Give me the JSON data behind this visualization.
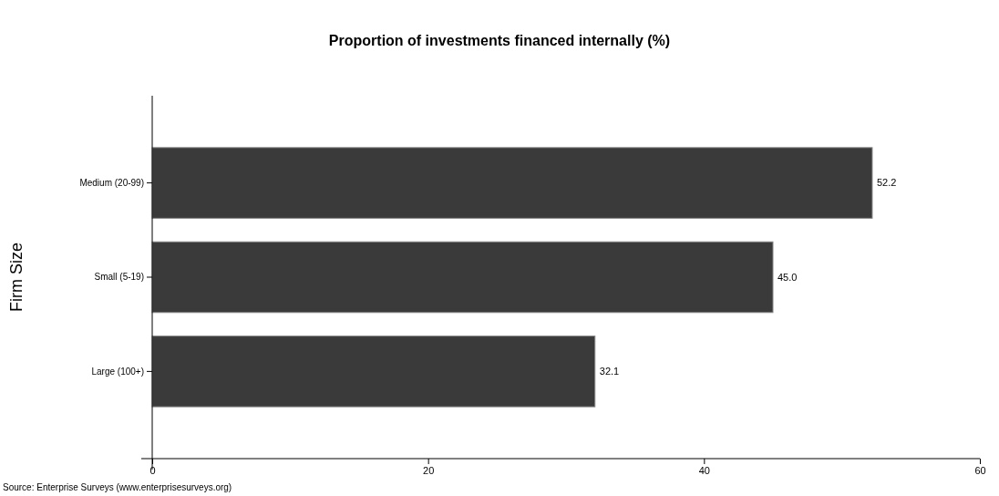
{
  "chart_data": {
    "type": "bar",
    "orientation": "horizontal",
    "title": "Proportion of investments financed internally (%)",
    "ylabel": "Firm Size",
    "categories": [
      "Medium (20-99)",
      "Small (5-19)",
      "Large (100+)"
    ],
    "values": [
      52.2,
      45.0,
      32.1
    ],
    "value_labels": [
      "52.2",
      "45.0",
      "32.1"
    ],
    "color": "#3a3a3a",
    "xlim": [
      0,
      60
    ],
    "xticks": [
      0,
      20,
      40,
      60
    ],
    "grid": false,
    "annotations": [
      "Source: Enterprise Surveys (www.enterprisesurveys.org)"
    ]
  }
}
